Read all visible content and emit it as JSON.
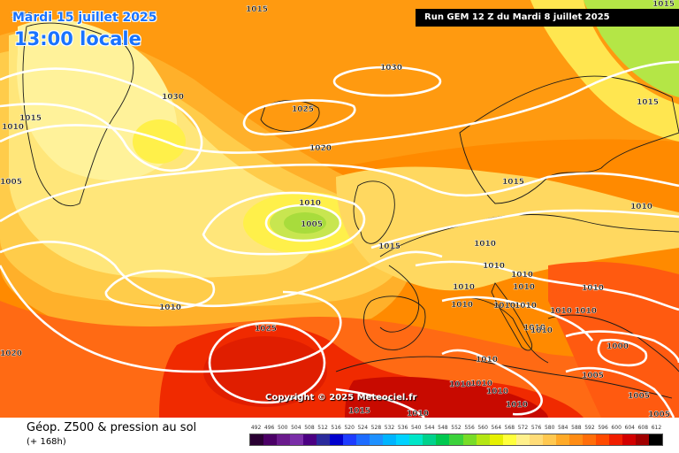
{
  "header": {
    "date": "Mardi 15 juillet 2025",
    "time": "13:00 locale",
    "run": "Run GEM 12 Z du Mardi 8 juillet 2025"
  },
  "copyright": "Copyright © 2025 Meteociel.fr",
  "footer": {
    "title": "Géop. Z500 & pression au sol",
    "lead": "(+ 168h)"
  },
  "isobars": [
    {
      "text": "1015"
    },
    {
      "text": "1010"
    },
    {
      "text": "1030"
    },
    {
      "text": "1015"
    },
    {
      "text": "1010"
    },
    {
      "text": "1005"
    },
    {
      "text": "1030"
    },
    {
      "text": "1025"
    },
    {
      "text": "1020"
    },
    {
      "text": "1015"
    },
    {
      "text": "1015"
    },
    {
      "text": "1010"
    },
    {
      "text": "1005"
    },
    {
      "text": "1010"
    },
    {
      "text": "1015"
    },
    {
      "text": "1010"
    },
    {
      "text": "1010"
    },
    {
      "text": "1010"
    },
    {
      "text": "1010"
    },
    {
      "text": "1010"
    },
    {
      "text": "1010"
    },
    {
      "text": "1010"
    },
    {
      "text": "1010"
    },
    {
      "text": "1010"
    },
    {
      "text": "1010"
    },
    {
      "text": "1010"
    },
    {
      "text": "1010"
    },
    {
      "text": "1010"
    },
    {
      "text": "1010"
    },
    {
      "text": "1000"
    },
    {
      "text": "1005"
    },
    {
      "text": "1005"
    },
    {
      "text": "1010"
    },
    {
      "text": "1025"
    },
    {
      "text": "1020"
    },
    {
      "text": "1010"
    },
    {
      "text": "1010"
    },
    {
      "text": "1010"
    },
    {
      "text": "1010"
    },
    {
      "text": "1015"
    },
    {
      "text": "1010"
    },
    {
      "text": "1005"
    },
    {
      "text": "1015"
    }
  ],
  "scale": {
    "labels": [
      "492",
      "496",
      "500",
      "504",
      "508",
      "512",
      "516",
      "520",
      "524",
      "528",
      "532",
      "536",
      "540",
      "544",
      "548",
      "552",
      "556",
      "560",
      "564",
      "568",
      "572",
      "576",
      "580",
      "584",
      "588",
      "592",
      "596",
      "600",
      "604",
      "608",
      "612"
    ],
    "colors": [
      "#2a0033",
      "#4b0066",
      "#6a1a8c",
      "#7a2ea8",
      "#4b0082",
      "#2a2a9c",
      "#0000cd",
      "#1e3cff",
      "#1e6cff",
      "#1e90ff",
      "#00b4ff",
      "#00d2ff",
      "#00e6c8",
      "#00d28c",
      "#00c850",
      "#3cd23c",
      "#78dc28",
      "#b4e614",
      "#e6f000",
      "#ffff3c",
      "#fff08c",
      "#ffdc78",
      "#ffc850",
      "#ffaa28",
      "#ff8c14",
      "#ff6e0a",
      "#ff4a00",
      "#f01e00",
      "#d20000",
      "#a00000",
      "#000000"
    ]
  }
}
